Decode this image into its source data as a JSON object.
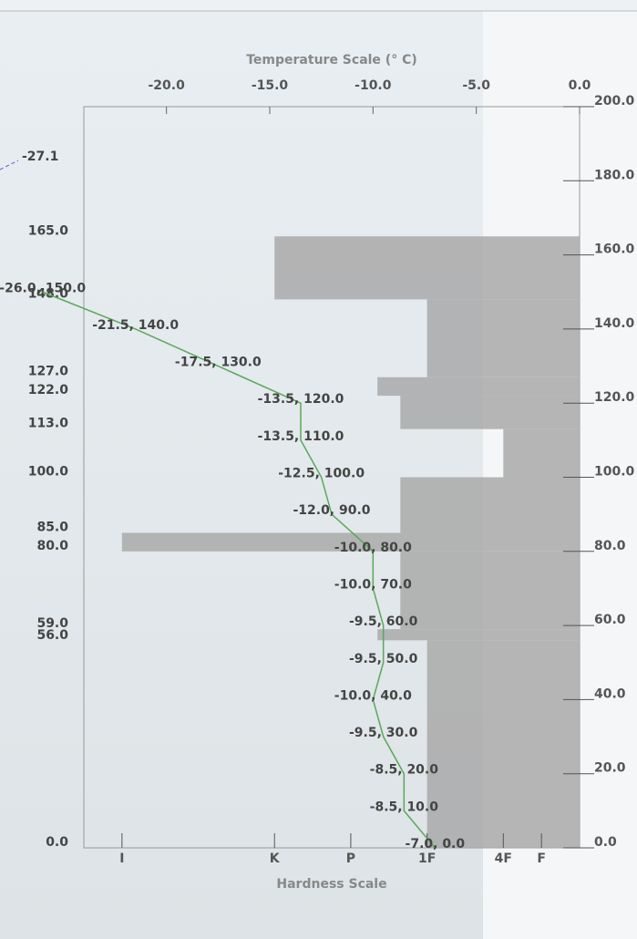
{
  "chart_data": {
    "type": "profile",
    "title": "Temperature Scale (° C)",
    "xlabel": "Hardness Scale",
    "xlim": [
      -24,
      0
    ],
    "xticks": [
      {
        "value": -20,
        "label": "-20.0"
      },
      {
        "value": -15,
        "label": "-15.0"
      },
      {
        "value": -10,
        "label": "-10.0"
      },
      {
        "value": -5,
        "label": "-5.0"
      },
      {
        "value": 0,
        "label": "0.0"
      }
    ],
    "ylim": [
      0,
      200
    ],
    "yticks": [
      {
        "value": 0,
        "label": "0.0"
      },
      {
        "value": 20,
        "label": "20.0"
      },
      {
        "value": 40,
        "label": "40.0"
      },
      {
        "value": 60,
        "label": "60.0"
      },
      {
        "value": 80,
        "label": "80.0"
      },
      {
        "value": 100,
        "label": "100.0"
      },
      {
        "value": 120,
        "label": "120.0"
      },
      {
        "value": 140,
        "label": "140.0"
      },
      {
        "value": 160,
        "label": "160.0"
      },
      {
        "value": 180,
        "label": "180.0"
      },
      {
        "value": 200,
        "label": "200.0"
      }
    ],
    "hardness_lim": [
      13,
      0
    ],
    "hardness_ticks": [
      {
        "value": 12,
        "label": "I"
      },
      {
        "value": 8,
        "label": "K"
      },
      {
        "value": 6,
        "label": "P"
      },
      {
        "value": 4,
        "label": "1F"
      },
      {
        "value": 2,
        "label": "4F"
      },
      {
        "value": 1,
        "label": "F"
      }
    ],
    "layer_color": "#a9a9a9",
    "layers": [
      {
        "bottom": 148,
        "top": 165,
        "hardness": 8
      },
      {
        "bottom": 127,
        "top": 148,
        "hardness": 4
      },
      {
        "bottom": 122,
        "top": 127,
        "hardness": 5.3
      },
      {
        "bottom": 113,
        "top": 122,
        "hardness": 4.7
      },
      {
        "bottom": 100,
        "top": 113,
        "hardness": 2
      },
      {
        "bottom": 85,
        "top": 100,
        "hardness": 4.7
      },
      {
        "bottom": 80,
        "top": 85,
        "hardness": 12
      },
      {
        "bottom": 59,
        "top": 80,
        "hardness": 4.7
      },
      {
        "bottom": 56,
        "top": 59,
        "hardness": 5.3
      },
      {
        "bottom": 0,
        "top": 56,
        "hardness": 4
      }
    ],
    "layer_boundaries": [
      {
        "value": 165,
        "label": "165.0"
      },
      {
        "value": 148,
        "label": "148.0"
      },
      {
        "value": 127,
        "label": "127.0"
      },
      {
        "value": 122,
        "label": "122.0"
      },
      {
        "value": 113,
        "label": "113.0"
      },
      {
        "value": 100,
        "label": "100.0"
      },
      {
        "value": 85,
        "label": "85.0"
      },
      {
        "value": 80,
        "label": "80.0"
      },
      {
        "value": 59,
        "label": "59.0"
      },
      {
        "value": 56,
        "label": "56.0"
      },
      {
        "value": 0,
        "label": "0.0"
      }
    ],
    "series": [
      {
        "color": "#5aa85a",
        "x": [
          -7,
          -8.5,
          -8.5,
          -9.5,
          -10,
          -9.5,
          -9.5,
          -10,
          -10,
          -12,
          -12.5,
          -13.5,
          -13.5,
          -17.5,
          -21.5,
          -26
        ],
        "values": [
          0,
          10,
          20,
          30,
          40,
          50,
          60,
          70,
          80,
          90,
          100,
          110,
          120,
          130,
          140,
          150
        ],
        "value_labels": [
          "-7.0, 0.0",
          "-8.5, 10.0",
          "-8.5, 20.0",
          "-9.5, 30.0",
          "-10.0, 40.0",
          "-9.5, 50.0",
          "-9.5, 60.0",
          "-10.0, 70.0",
          "-10.0, 80.0",
          "-12.0, 90.0",
          "-12.5, 100.0",
          "-13.5, 110.0",
          "-13.5, 120.0",
          "-17.5, 130.0",
          "-21.5, 140.0",
          "-26.0, 150.0"
        ]
      }
    ],
    "air_temperature": {
      "value": -27.1,
      "label": "-27.1"
    }
  }
}
